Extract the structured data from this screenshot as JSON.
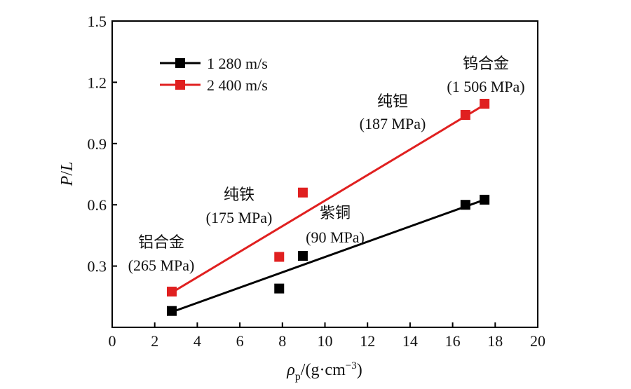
{
  "chart_data": {
    "type": "scatter",
    "xlabel": {
      "symbol": "ρ",
      "subscript": "p",
      "unit": "/(g·cm",
      "exponent": "−3",
      "close": ")"
    },
    "ylabel": {
      "p": "P",
      "slash": "/",
      "l": "L"
    },
    "xlim": [
      0,
      20
    ],
    "ylim": [
      0,
      1.5
    ],
    "xticks": [
      "0",
      "2",
      "4",
      "6",
      "8",
      "10",
      "12",
      "14",
      "16",
      "18",
      "20"
    ],
    "yticks": [
      "0.3",
      "0.6",
      "0.9",
      "1.2",
      "1.5"
    ],
    "legend_position": "top-left",
    "series": [
      {
        "name": "1 280 m/s",
        "color": "#000000",
        "marker": "square",
        "x": [
          2.8,
          7.85,
          8.96,
          16.6,
          17.5
        ],
        "y": [
          0.08,
          0.19,
          0.35,
          0.6,
          0.625
        ],
        "fit": {
          "x": [
            2.8,
            17.5
          ],
          "y": [
            0.075,
            0.625
          ]
        }
      },
      {
        "name": "2 400 m/s",
        "color": "#e02020",
        "marker": "square",
        "x": [
          2.8,
          7.85,
          8.96,
          16.6,
          17.5
        ],
        "y": [
          0.175,
          0.345,
          0.66,
          1.04,
          1.095
        ],
        "fit": {
          "x": [
            2.8,
            17.5
          ],
          "y": [
            0.17,
            1.09
          ]
        }
      }
    ],
    "annotations": [
      {
        "id": "al",
        "lines": [
          "铝合金",
          "(265 MPa)"
        ]
      },
      {
        "id": "fe",
        "lines": [
          "纯铁",
          "(175 MPa)"
        ]
      },
      {
        "id": "cu",
        "lines": [
          "紫铜",
          "(90 MPa)"
        ]
      },
      {
        "id": "ta",
        "lines": [
          "纯钽",
          "(187 MPa)"
        ]
      },
      {
        "id": "w",
        "lines": [
          "钨合金",
          "(1 506 MPa)"
        ]
      }
    ]
  }
}
